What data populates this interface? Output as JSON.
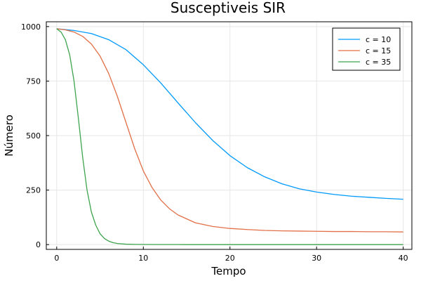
{
  "chart_data": {
    "type": "line",
    "title": "Susceptiveis SIR",
    "xlabel": "Tempo",
    "ylabel": "Número",
    "xlim": [
      -1.2,
      41
    ],
    "ylim": [
      -22,
      1022
    ],
    "xticks": [
      0,
      10,
      20,
      30,
      40
    ],
    "yticks": [
      0,
      250,
      500,
      750,
      1000
    ],
    "grid": true,
    "legend_position": "top-right",
    "series": [
      {
        "name": "c = 10",
        "color": "#009AFA",
        "x": [
          0,
          2,
          4,
          6,
          8,
          10,
          12,
          14,
          16,
          18,
          20,
          22,
          24,
          26,
          28,
          30,
          32,
          34,
          36,
          38,
          40
        ],
        "y": [
          990,
          982,
          968,
          940,
          894,
          825,
          742,
          650,
          560,
          478,
          408,
          353,
          311,
          279,
          256,
          241,
          230,
          222,
          217,
          212,
          208
        ]
      },
      {
        "name": "c = 15",
        "color": "#E36F47",
        "x": [
          0,
          1,
          2,
          3,
          4,
          5,
          6,
          7,
          8,
          9,
          10,
          11,
          12,
          13,
          14,
          16,
          18,
          20,
          22,
          24,
          26,
          28,
          30,
          32,
          34,
          36,
          38,
          40
        ],
        "y": [
          990,
          985,
          975,
          955,
          920,
          865,
          785,
          680,
          560,
          440,
          338,
          262,
          205,
          165,
          136,
          100,
          83,
          74,
          69,
          65,
          63,
          62,
          61,
          60,
          60,
          59,
          59,
          58
        ]
      },
      {
        "name": "c = 35",
        "color": "#3EA44E",
        "x": [
          0,
          0.5,
          1,
          1.5,
          2,
          2.5,
          3,
          3.5,
          4,
          4.5,
          5,
          5.5,
          6,
          6.5,
          7,
          8,
          9,
          10,
          12,
          15,
          20,
          30,
          40
        ],
        "y": [
          990,
          975,
          940,
          870,
          750,
          580,
          400,
          250,
          150,
          90,
          50,
          28,
          16,
          9,
          5,
          2,
          1,
          0.5,
          0.2,
          0,
          0,
          0,
          0
        ]
      }
    ]
  }
}
